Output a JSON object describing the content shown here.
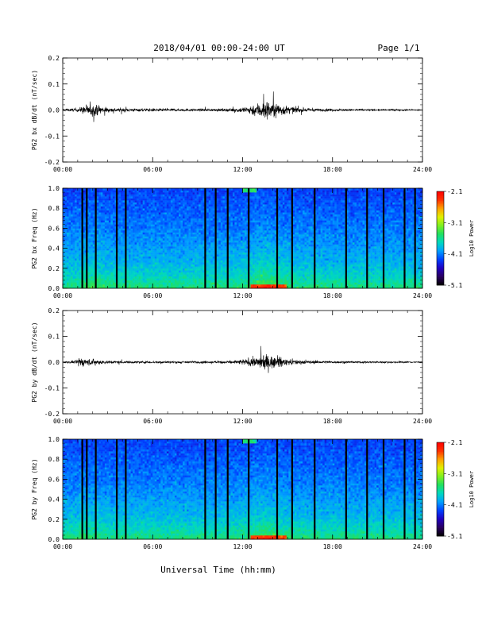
{
  "header": {
    "date_range": "2018/04/01  00:00-24:00 UT",
    "page": "Page 1/1"
  },
  "colors": {
    "trace": "#000000",
    "background": "#ffffff",
    "colormap": [
      "#000000",
      "#2a0060",
      "#2000c0",
      "#0040ff",
      "#00a0ff",
      "#00d8c0",
      "#20e060",
      "#80f020",
      "#e0f000",
      "#ffa000",
      "#ff3000",
      "#ff0000"
    ]
  },
  "chart_data": [
    {
      "type": "line",
      "ylabel": "PG2 bx dB/dt (nT/sec)",
      "xlim": [
        0,
        24
      ],
      "ylim": [
        -0.2,
        0.2
      ],
      "x_ticks": [
        "00:00",
        "06:00",
        "12:00",
        "18:00",
        "24:00"
      ],
      "y_ticks": [
        "0.2",
        "0.1",
        "0.0",
        "-0.1",
        "-0.2"
      ],
      "envelope": {
        "x_hours": [
          0,
          1,
          1.5,
          2,
          2.5,
          3,
          4,
          5,
          6,
          7,
          8,
          9,
          10,
          11,
          11.5,
          12,
          12.5,
          13,
          13.5,
          14,
          14.5,
          15,
          16,
          17,
          18,
          20,
          22,
          24
        ],
        "amplitude": [
          0.006,
          0.012,
          0.03,
          0.035,
          0.03,
          0.015,
          0.012,
          0.01,
          0.01,
          0.008,
          0.008,
          0.008,
          0.008,
          0.009,
          0.012,
          0.018,
          0.03,
          0.045,
          0.065,
          0.05,
          0.04,
          0.025,
          0.012,
          0.009,
          0.008,
          0.006,
          0.005,
          0.004
        ]
      }
    },
    {
      "type": "heatmap",
      "ylabel": "PG2 bx Freq (Hz)",
      "xlim": [
        0,
        24
      ],
      "ylim": [
        0.0,
        1.0
      ],
      "x_ticks": [
        "00:00",
        "06:00",
        "12:00",
        "18:00",
        "24:00"
      ],
      "y_ticks": [
        "1.0",
        "0.8",
        "0.6",
        "0.4",
        "0.2",
        "0.0"
      ],
      "colorbar_label": "Log10 Power",
      "colorbar_ticks": [
        "-2.1",
        "-3.1",
        "-4.1",
        "-5.1"
      ],
      "zlim": [
        -5.1,
        -2.1
      ],
      "data_gap_hours": [
        1.3,
        1.6,
        2.2,
        3.6,
        4.2,
        9.5,
        10.2,
        11.0,
        12.4,
        14.3,
        15.3,
        16.8,
        18.9,
        20.3,
        21.4,
        22.8,
        23.5
      ]
    },
    {
      "type": "line",
      "ylabel": "PG2 by dB/dt (nT/sec)",
      "xlim": [
        0,
        24
      ],
      "ylim": [
        -0.2,
        0.2
      ],
      "x_ticks": [
        "00:00",
        "06:00",
        "12:00",
        "18:00",
        "24:00"
      ],
      "y_ticks": [
        "0.2",
        "0.1",
        "0.0",
        "-0.1",
        "-0.2"
      ],
      "envelope": {
        "x_hours": [
          0,
          1,
          1.1,
          1.5,
          2,
          2.5,
          3,
          4,
          5,
          6,
          7,
          8,
          9,
          10,
          11,
          11.5,
          12,
          12.5,
          13,
          13.5,
          14,
          14.5,
          15,
          16,
          17,
          18,
          20,
          22,
          24
        ],
        "amplitude": [
          0.005,
          0.01,
          0.04,
          0.02,
          0.018,
          0.015,
          0.01,
          0.008,
          0.007,
          0.007,
          0.007,
          0.007,
          0.007,
          0.007,
          0.009,
          0.012,
          0.018,
          0.025,
          0.035,
          0.05,
          0.04,
          0.03,
          0.02,
          0.012,
          0.009,
          0.007,
          0.006,
          0.005,
          0.004
        ]
      }
    },
    {
      "type": "heatmap",
      "ylabel": "PG2 by Freq (Hz)",
      "xlim": [
        0,
        24
      ],
      "ylim": [
        0.0,
        1.0
      ],
      "x_ticks": [
        "00:00",
        "06:00",
        "12:00",
        "18:00",
        "24:00"
      ],
      "y_ticks": [
        "1.0",
        "0.8",
        "0.6",
        "0.4",
        "0.2",
        "0.0"
      ],
      "colorbar_label": "Log10 Power",
      "colorbar_ticks": [
        "-2.1",
        "-3.1",
        "-4.1",
        "-5.1"
      ],
      "zlim": [
        -5.1,
        -2.1
      ],
      "data_gap_hours": [
        1.3,
        1.6,
        2.2,
        3.6,
        4.2,
        9.5,
        10.2,
        11.0,
        12.4,
        14.3,
        15.3,
        16.8,
        18.9,
        20.3,
        21.4,
        22.8,
        23.5
      ]
    }
  ],
  "footer": {
    "xlabel": "Universal Time (hh:mm)"
  }
}
